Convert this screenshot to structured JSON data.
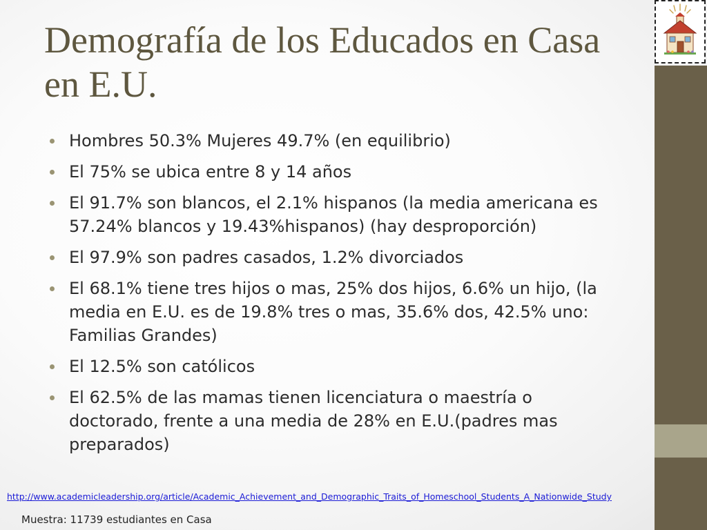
{
  "slide": {
    "title": "Demografía de los Educados en Casa en E.U.",
    "bullets": [
      "Hombres 50.3% Mujeres 49.7% (en equilibrio)",
      "El 75% se ubica entre 8 y 14 años",
      "El 91.7% son blancos, el 2.1% hispanos (la media americana es 57.24% blancos y 19.43%hispanos) (hay desproporción)",
      "El 97.9% son padres casados, 1.2% divorciados",
      "El 68.1% tiene tres hijos o mas, 25% dos hijos, 6.6% un hijo, (la media en E.U. es de 19.8% tres o mas, 35.6% dos, 42.5% uno: Familias Grandes)",
      "El 12.5% son católicos",
      "El 62.5% de las mamas tienen licenciatura o maestría o doctorado, frente a una media de 28% en E.U.(padres mas preparados)"
    ],
    "source_link": "http://www.academicleadership.org/article/Academic_Achievement_and_Demographic_Traits_of_Homeschool_Students_A_Nationwide_Study",
    "sample_note": "Muestra: 11739 estudiantes en Casa"
  },
  "theme": {
    "title_color": "#5e573f",
    "band_dark": "#6a6049",
    "band_light": "#a9a58b",
    "bullet_color": "#9a9473",
    "link_color": "#1a1ad6"
  },
  "logo": {
    "icon": "schoolhouse-icon"
  }
}
